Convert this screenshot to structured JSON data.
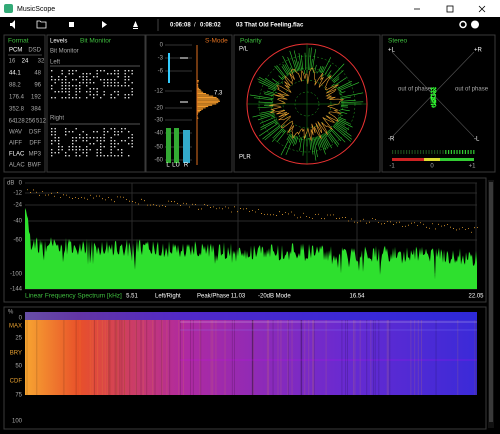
{
  "window": {
    "title": "MusicScope"
  },
  "toolbar": {
    "elapsed": "0:06:08",
    "separator": "/",
    "total": "0:08:02",
    "track": "03 That Old Feeling.flac"
  },
  "format": {
    "title": "Format",
    "rows": [
      [
        "PCM",
        "DSD"
      ],
      [
        "16",
        "24",
        "32"
      ],
      [
        "44.1",
        "48"
      ],
      [
        "88.2",
        "96"
      ],
      [
        "176.4",
        "192"
      ],
      [
        "352.8",
        "384"
      ],
      [
        "64",
        "128",
        "256",
        "512"
      ],
      [
        "WAV",
        "DSF"
      ],
      [
        "AIFF",
        "DFF"
      ],
      [
        "FLAC",
        "MP3"
      ],
      [
        "ALAC",
        "BWF"
      ]
    ]
  },
  "levels": {
    "title": "Levels",
    "mode": "Bit Monitor",
    "subtitle": "Bit Monitor",
    "left": "Left",
    "right": "Right",
    "scale": [
      "0",
      "-3",
      "-6",
      "-12",
      "-20",
      "-30",
      "-40",
      "-50",
      "-60"
    ],
    "readout": "7.3",
    "smode": "S-Mode",
    "meters": [
      "L",
      "LU",
      "R"
    ]
  },
  "polarity": {
    "title": "Polarity",
    "top": "P/L",
    "bottom": "PLR"
  },
  "stereo": {
    "title": "Stereo",
    "top_left": "+L",
    "top_right": "+R",
    "bottom_left": "-R",
    "bottom_right": "-L",
    "left_note": "out of phase",
    "right_note": "out of phase",
    "scale": [
      "-1",
      "0",
      "+1"
    ]
  },
  "spectrum": {
    "unit": "dB",
    "yticks": [
      "0",
      "-12",
      "-24",
      "-40",
      "-60",
      "-100",
      "-144"
    ],
    "xticks": [
      "5.51",
      "11.03",
      "16.54",
      "22.05"
    ],
    "caption": "Linear Frequency Spectrum [kHz]",
    "modes": [
      "Left/Right",
      "Peak/Phase",
      "-20dB Mode"
    ]
  },
  "spectrogram": {
    "labels": [
      "%",
      "0",
      "MAX",
      "25",
      "BRY",
      "50",
      "CDF",
      "75",
      "100"
    ]
  }
}
